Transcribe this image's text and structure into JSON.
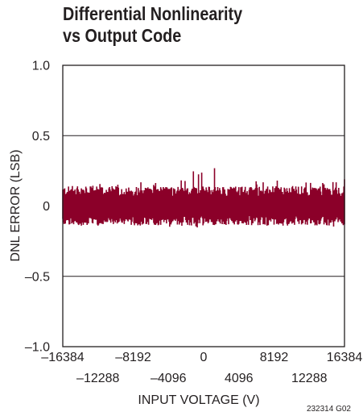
{
  "title_lines": [
    "Differential Nonlinearity",
    "vs Output Code"
  ],
  "figure_code": "232314 G02",
  "colors": {
    "series": "#8b0029",
    "grid": "#231f20",
    "text": "#231f20"
  },
  "chart_data": {
    "type": "line",
    "title": "Differential Nonlinearity vs Output Code",
    "xlabel": "INPUT VOLTAGE (V)",
    "ylabel": "DNL ERROR (LSB)",
    "xlim": [
      -16384,
      16384
    ],
    "ylim": [
      -1.0,
      1.0
    ],
    "x_ticks_upper": [
      -16384,
      -8192,
      0,
      8192,
      16384
    ],
    "x_tick_labels_upper": [
      "–16384",
      "–8192",
      "0",
      "8192",
      "16384"
    ],
    "x_ticks_lower": [
      -12288,
      -4096,
      4096,
      12288
    ],
    "x_tick_labels_lower": [
      "–12288",
      "–4096",
      "4096",
      "12288"
    ],
    "y_ticks": [
      1.0,
      0.5,
      0,
      -0.5,
      -1.0
    ],
    "y_tick_labels": [
      "1.0",
      "0.5",
      "0",
      "–0.5",
      "–1.0"
    ],
    "grid_y": true,
    "series": [
      {
        "band_upper": 0.12,
        "band_lower": -0.12,
        "x": [
          -16384,
          -15360,
          -14336,
          -13312,
          -12288,
          -11264,
          -10240,
          -9216,
          -8192,
          -7168,
          -6144,
          -5120,
          -4096,
          -3072,
          -2048,
          -1024,
          0,
          1024,
          2048,
          3072,
          4096,
          5120,
          6144,
          7168,
          8192,
          9216,
          10240,
          11264,
          12288,
          13312,
          14336,
          15360,
          16384
        ],
        "max": [
          0.17,
          0.16,
          0.15,
          0.17,
          0.16,
          0.18,
          0.15,
          0.17,
          0.16,
          0.19,
          0.17,
          0.16,
          0.25,
          0.18,
          0.21,
          0.28,
          0.23,
          0.3,
          0.24,
          0.2,
          0.17,
          0.21,
          0.18,
          0.17,
          0.2,
          0.17,
          0.16,
          0.18,
          0.17,
          0.16,
          0.17,
          0.18,
          0.22
        ],
        "min": [
          -0.13,
          -0.14,
          -0.12,
          -0.15,
          -0.13,
          -0.16,
          -0.14,
          -0.13,
          -0.15,
          -0.14,
          -0.16,
          -0.13,
          -0.15,
          -0.14,
          -0.17,
          -0.15,
          -0.18,
          -0.14,
          -0.16,
          -0.15,
          -0.13,
          -0.15,
          -0.14,
          -0.16,
          -0.13,
          -0.14,
          -0.13,
          -0.15,
          -0.14,
          -0.13,
          -0.14,
          -0.15,
          -0.18
        ]
      }
    ]
  }
}
